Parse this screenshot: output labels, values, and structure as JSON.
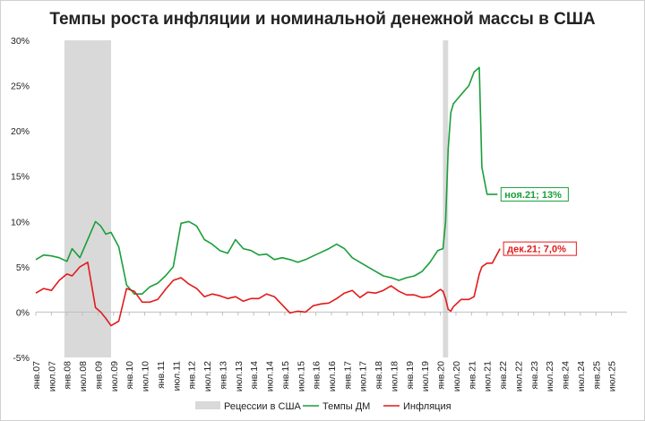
{
  "chart_data": {
    "type": "line",
    "title": "Темпы роста инфляции и номинальной денежной массы в США",
    "ylim": [
      -5,
      30
    ],
    "y_ticks": [
      -5,
      0,
      5,
      10,
      15,
      20,
      25,
      30
    ],
    "y_tick_labels": [
      "-5%",
      "0%",
      "5%",
      "10%",
      "15%",
      "20%",
      "25%",
      "30%"
    ],
    "x_tick_labels": [
      "янв.07",
      "июл.07",
      "янв.08",
      "июл.08",
      "янв.09",
      "июл.09",
      "янв.10",
      "июл.10",
      "янв.11",
      "июл.11",
      "янв.12",
      "июл.12",
      "янв.13",
      "июл.13",
      "янв.14",
      "июл.14",
      "янв.15",
      "июл.15",
      "янв.16",
      "июл.16",
      "янв.17",
      "июл.17",
      "янв.18",
      "июл.18",
      "янв.19",
      "июл.19",
      "янв.20",
      "июл.20",
      "янв.21",
      "июл.21",
      "янв.22",
      "июл.22",
      "янв.23",
      "июл.23",
      "янв.24",
      "июл.24",
      "янв.25",
      "июл.25"
    ],
    "grid": false,
    "legend_placement": "bottom-center",
    "recessions": [
      {
        "start": "2007-12",
        "end": "2009-06"
      },
      {
        "start": "2020-02",
        "end": "2020-04"
      }
    ],
    "series": [
      {
        "name": "Темпы ДМ",
        "color": "#1a9e3a",
        "x": [
          "2007-01",
          "2007-04",
          "2007-07",
          "2007-10",
          "2008-01",
          "2008-03",
          "2008-06",
          "2008-09",
          "2008-12",
          "2009-02",
          "2009-04",
          "2009-06",
          "2009-09",
          "2009-12",
          "2010-03",
          "2010-06",
          "2010-09",
          "2010-12",
          "2011-03",
          "2011-06",
          "2011-09",
          "2011-12",
          "2012-03",
          "2012-06",
          "2012-09",
          "2012-12",
          "2013-03",
          "2013-06",
          "2013-09",
          "2013-12",
          "2014-03",
          "2014-06",
          "2014-09",
          "2014-12",
          "2015-03",
          "2015-06",
          "2015-09",
          "2015-12",
          "2016-03",
          "2016-06",
          "2016-09",
          "2016-12",
          "2017-03",
          "2017-06",
          "2017-09",
          "2017-12",
          "2018-03",
          "2018-06",
          "2018-09",
          "2018-12",
          "2019-03",
          "2019-06",
          "2019-09",
          "2019-12",
          "2020-01",
          "2020-02",
          "2020-03",
          "2020-04",
          "2020-05",
          "2020-06",
          "2020-09",
          "2020-12",
          "2021-02",
          "2021-04",
          "2021-05",
          "2021-07",
          "2021-09",
          "2021-11"
        ],
        "values": [
          5.8,
          6.3,
          6.2,
          6.0,
          5.6,
          7.0,
          6.0,
          8.0,
          10.0,
          9.5,
          8.6,
          8.8,
          7.2,
          3.0,
          2.0,
          2.0,
          2.8,
          3.2,
          4.0,
          5.0,
          9.8,
          10.0,
          9.5,
          8.0,
          7.5,
          6.8,
          6.5,
          8.0,
          7.0,
          6.8,
          6.3,
          6.4,
          5.8,
          6.0,
          5.8,
          5.5,
          5.8,
          6.2,
          6.6,
          7.0,
          7.5,
          7.0,
          6.0,
          5.5,
          5.0,
          4.5,
          4.0,
          3.8,
          3.5,
          3.8,
          4.0,
          4.5,
          5.5,
          6.8,
          6.9,
          7.0,
          10.0,
          18.0,
          22.0,
          23.0,
          24.0,
          25.0,
          26.5,
          27.0,
          16.0,
          13.0,
          13.0,
          13.0
        ]
      },
      {
        "name": "Инфляция",
        "color": "#e21a1a",
        "x": [
          "2007-01",
          "2007-04",
          "2007-07",
          "2007-10",
          "2008-01",
          "2008-03",
          "2008-06",
          "2008-09",
          "2008-12",
          "2009-02",
          "2009-04",
          "2009-06",
          "2009-09",
          "2009-12",
          "2010-03",
          "2010-06",
          "2010-09",
          "2010-12",
          "2011-03",
          "2011-06",
          "2011-09",
          "2011-12",
          "2012-03",
          "2012-06",
          "2012-09",
          "2012-12",
          "2013-03",
          "2013-06",
          "2013-09",
          "2013-12",
          "2014-03",
          "2014-06",
          "2014-09",
          "2014-12",
          "2015-03",
          "2015-06",
          "2015-09",
          "2015-12",
          "2016-03",
          "2016-06",
          "2016-09",
          "2016-12",
          "2017-03",
          "2017-06",
          "2017-09",
          "2017-12",
          "2018-03",
          "2018-06",
          "2018-09",
          "2018-12",
          "2019-03",
          "2019-06",
          "2019-09",
          "2019-12",
          "2020-01",
          "2020-02",
          "2020-03",
          "2020-04",
          "2020-05",
          "2020-06",
          "2020-09",
          "2020-12",
          "2021-02",
          "2021-04",
          "2021-05",
          "2021-07",
          "2021-09",
          "2021-12"
        ],
        "values": [
          2.1,
          2.6,
          2.4,
          3.5,
          4.2,
          4.0,
          5.0,
          5.5,
          0.5,
          0.0,
          -0.7,
          -1.5,
          -1.0,
          2.6,
          2.3,
          1.1,
          1.1,
          1.4,
          2.5,
          3.5,
          3.8,
          3.1,
          2.6,
          1.7,
          2.0,
          1.8,
          1.5,
          1.7,
          1.2,
          1.5,
          1.5,
          2.0,
          1.7,
          0.8,
          -0.1,
          0.1,
          0.0,
          0.7,
          0.9,
          1.0,
          1.5,
          2.1,
          2.4,
          1.6,
          2.2,
          2.1,
          2.4,
          2.9,
          2.3,
          1.9,
          1.9,
          1.6,
          1.7,
          2.3,
          2.5,
          2.3,
          1.5,
          0.3,
          0.1,
          0.6,
          1.4,
          1.4,
          1.7,
          4.2,
          5.0,
          5.4,
          5.4,
          7.0
        ]
      }
    ],
    "annotations": [
      {
        "text": "ноя.21; 13%",
        "series": "Темпы ДМ",
        "color": "#1a9e3a"
      },
      {
        "text": "дек.21; 7,0%",
        "series": "Инфляция",
        "color": "#e21a1a"
      }
    ],
    "legend": [
      {
        "label": "Рецессии в США",
        "color": "#d9d9d9",
        "kind": "area"
      },
      {
        "label": "Темпы ДМ",
        "color": "#1a9e3a",
        "kind": "line"
      },
      {
        "label": "Инфляция",
        "color": "#e21a1a",
        "kind": "line"
      }
    ]
  }
}
